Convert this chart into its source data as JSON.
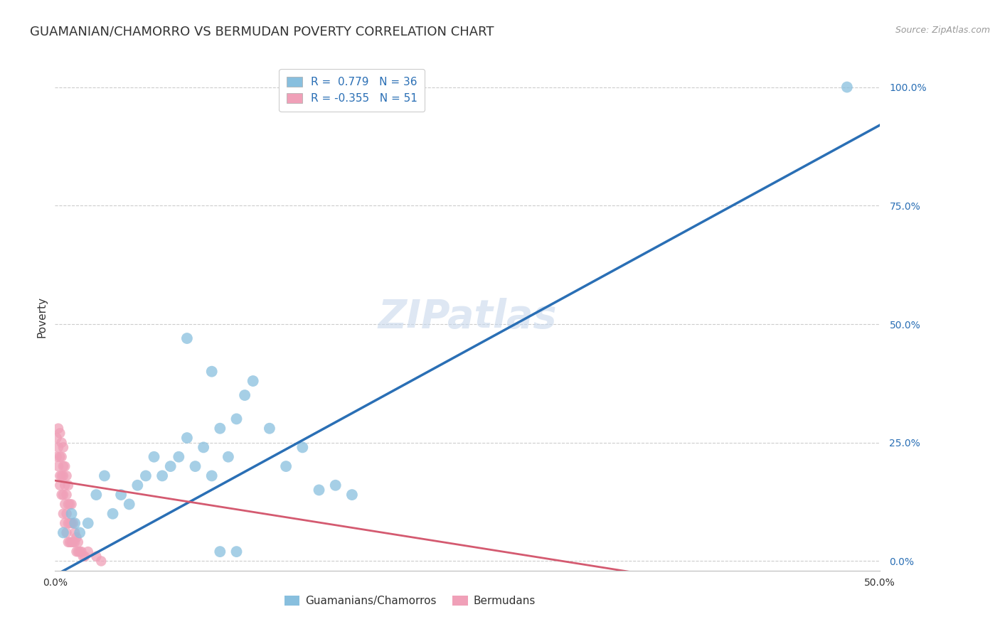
{
  "title": "GUAMANIAN/CHAMORRO VS BERMUDAN POVERTY CORRELATION CHART",
  "source": "Source: ZipAtlas.com",
  "ylabel": "Poverty",
  "xlim": [
    0.0,
    0.5
  ],
  "ylim": [
    -0.02,
    1.05
  ],
  "yticks": [
    0.0,
    0.25,
    0.5,
    0.75,
    1.0
  ],
  "ytick_labels": [
    "0.0%",
    "25.0%",
    "50.0%",
    "75.0%",
    "100.0%"
  ],
  "xticks": [
    0.0,
    0.1,
    0.2,
    0.3,
    0.4,
    0.5
  ],
  "xtick_labels": [
    "0.0%",
    "",
    "",
    "",
    "",
    "50.0%"
  ],
  "watermark": "ZIPatlas",
  "blue_R": "0.779",
  "blue_N": "36",
  "pink_R": "-0.355",
  "pink_N": "51",
  "blue_color": "#88bfde",
  "pink_color": "#f0a0b8",
  "blue_line_color": "#2a6fb5",
  "pink_line_color": "#d45a70",
  "blue_scatter": [
    [
      0.005,
      0.06
    ],
    [
      0.01,
      0.1
    ],
    [
      0.012,
      0.08
    ],
    [
      0.015,
      0.06
    ],
    [
      0.02,
      0.08
    ],
    [
      0.025,
      0.14
    ],
    [
      0.03,
      0.18
    ],
    [
      0.035,
      0.1
    ],
    [
      0.04,
      0.14
    ],
    [
      0.045,
      0.12
    ],
    [
      0.05,
      0.16
    ],
    [
      0.055,
      0.18
    ],
    [
      0.06,
      0.22
    ],
    [
      0.065,
      0.18
    ],
    [
      0.07,
      0.2
    ],
    [
      0.075,
      0.22
    ],
    [
      0.08,
      0.26
    ],
    [
      0.085,
      0.2
    ],
    [
      0.09,
      0.24
    ],
    [
      0.095,
      0.18
    ],
    [
      0.1,
      0.28
    ],
    [
      0.105,
      0.22
    ],
    [
      0.11,
      0.3
    ],
    [
      0.115,
      0.35
    ],
    [
      0.12,
      0.38
    ],
    [
      0.13,
      0.28
    ],
    [
      0.14,
      0.2
    ],
    [
      0.15,
      0.24
    ],
    [
      0.16,
      0.15
    ],
    [
      0.17,
      0.16
    ],
    [
      0.18,
      0.14
    ],
    [
      0.1,
      0.02
    ],
    [
      0.11,
      0.02
    ],
    [
      0.48,
      1.0
    ],
    [
      0.08,
      0.47
    ],
    [
      0.095,
      0.4
    ]
  ],
  "pink_scatter": [
    [
      0.001,
      0.26
    ],
    [
      0.001,
      0.22
    ],
    [
      0.002,
      0.2
    ],
    [
      0.002,
      0.24
    ],
    [
      0.002,
      0.28
    ],
    [
      0.003,
      0.18
    ],
    [
      0.003,
      0.16
    ],
    [
      0.003,
      0.22
    ],
    [
      0.003,
      0.27
    ],
    [
      0.004,
      0.14
    ],
    [
      0.004,
      0.18
    ],
    [
      0.004,
      0.22
    ],
    [
      0.004,
      0.25
    ],
    [
      0.005,
      0.1
    ],
    [
      0.005,
      0.14
    ],
    [
      0.005,
      0.18
    ],
    [
      0.005,
      0.2
    ],
    [
      0.005,
      0.24
    ],
    [
      0.006,
      0.08
    ],
    [
      0.006,
      0.12
    ],
    [
      0.006,
      0.16
    ],
    [
      0.006,
      0.2
    ],
    [
      0.007,
      0.06
    ],
    [
      0.007,
      0.1
    ],
    [
      0.007,
      0.14
    ],
    [
      0.007,
      0.18
    ],
    [
      0.008,
      0.04
    ],
    [
      0.008,
      0.08
    ],
    [
      0.008,
      0.12
    ],
    [
      0.008,
      0.16
    ],
    [
      0.009,
      0.04
    ],
    [
      0.009,
      0.08
    ],
    [
      0.009,
      0.12
    ],
    [
      0.01,
      0.04
    ],
    [
      0.01,
      0.08
    ],
    [
      0.01,
      0.12
    ],
    [
      0.011,
      0.04
    ],
    [
      0.011,
      0.08
    ],
    [
      0.012,
      0.04
    ],
    [
      0.012,
      0.06
    ],
    [
      0.013,
      0.02
    ],
    [
      0.013,
      0.05
    ],
    [
      0.014,
      0.02
    ],
    [
      0.014,
      0.04
    ],
    [
      0.015,
      0.02
    ],
    [
      0.016,
      0.02
    ],
    [
      0.017,
      0.01
    ],
    [
      0.018,
      0.01
    ],
    [
      0.02,
      0.02
    ],
    [
      0.025,
      0.01
    ],
    [
      0.028,
      0.0
    ]
  ],
  "blue_line_x": [
    0.0,
    0.5
  ],
  "blue_line_y": [
    -0.03,
    0.92
  ],
  "pink_line_x": [
    0.0,
    0.38
  ],
  "pink_line_y": [
    0.17,
    -0.04
  ],
  "background_color": "#ffffff",
  "grid_color": "#cccccc",
  "title_fontsize": 13,
  "axis_label_fontsize": 11,
  "tick_fontsize": 10,
  "legend_fontsize": 11,
  "watermark_fontsize": 40,
  "watermark_color": "#c8d8ec",
  "watermark_alpha": 0.6
}
